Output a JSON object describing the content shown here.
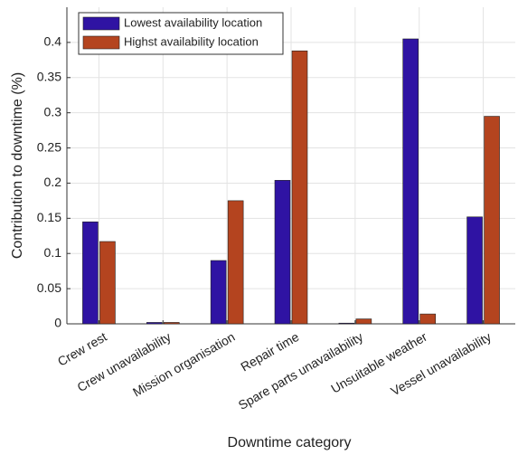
{
  "chart_data": {
    "type": "bar",
    "xlabel": "Downtime category",
    "ylabel": "Contribution to downtime (%)",
    "categories": [
      "Crew rest",
      "Crew unavailability",
      "Mission organisation",
      "Repair time",
      "Spare parts unavailability",
      "Unsuitable weather",
      "Vessel unavailability"
    ],
    "series": [
      {
        "name": "Lowest availability location",
        "color": "#2f13a3",
        "values": [
          0.145,
          0.002,
          0.09,
          0.204,
          0.001,
          0.405,
          0.152
        ]
      },
      {
        "name": "Highst availability location",
        "color": "#b4441f",
        "values": [
          0.117,
          0.002,
          0.175,
          0.388,
          0.007,
          0.014,
          0.295
        ]
      }
    ],
    "ylim": [
      0,
      0.45
    ],
    "yticks": [
      0,
      0.05,
      0.1,
      0.15,
      0.2,
      0.25,
      0.3,
      0.35,
      0.4
    ],
    "grid": true,
    "legend": "upper left"
  }
}
